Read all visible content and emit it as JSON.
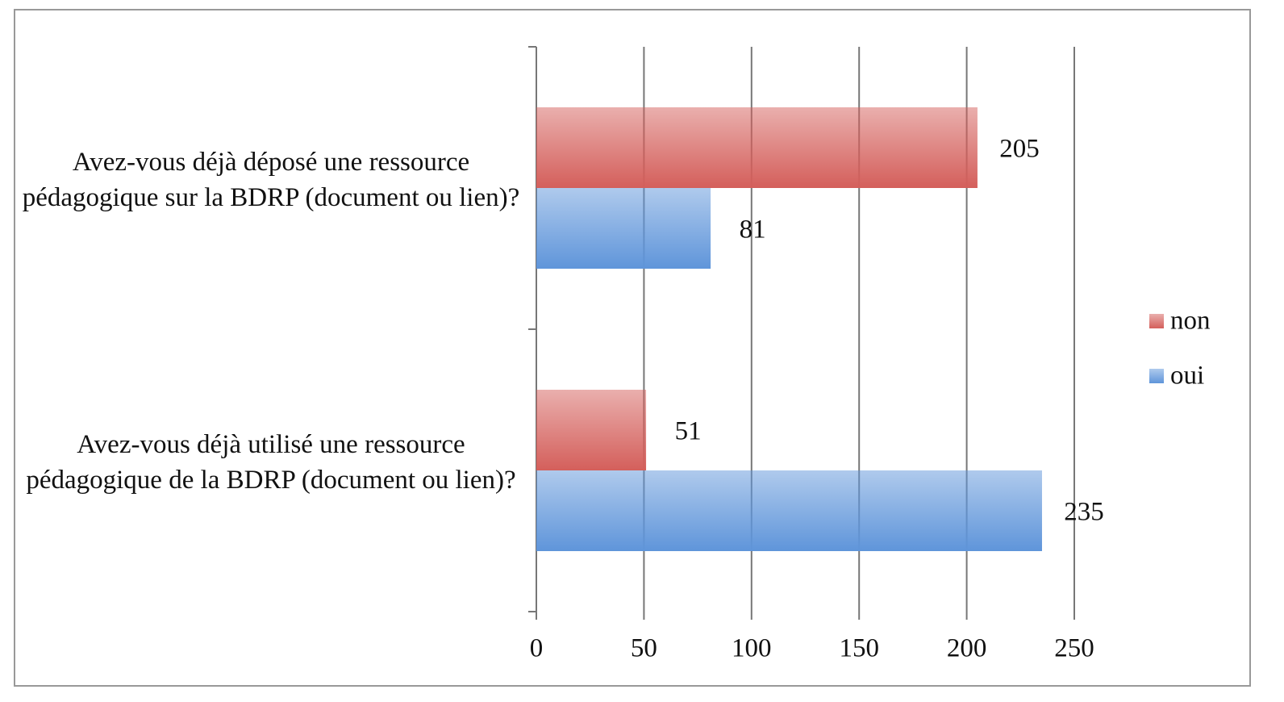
{
  "chart_data": {
    "type": "bar",
    "orientation": "horizontal",
    "categories": [
      "Avez-vous déjà déposé une ressource pédagogique sur la BDRP (document ou lien)?",
      "Avez-vous déjà utilisé une ressource pédagogique de la BDRP (document ou lien)?"
    ],
    "series": [
      {
        "name": "non",
        "color": "#d45f5b",
        "values": [
          205,
          51
        ]
      },
      {
        "name": "oui",
        "color": "#5f95da",
        "values": [
          81,
          235
        ]
      }
    ],
    "xlim": [
      0,
      250
    ],
    "xticks": [
      0,
      50,
      100,
      150,
      200,
      250
    ],
    "grid": true,
    "legend": "right"
  }
}
